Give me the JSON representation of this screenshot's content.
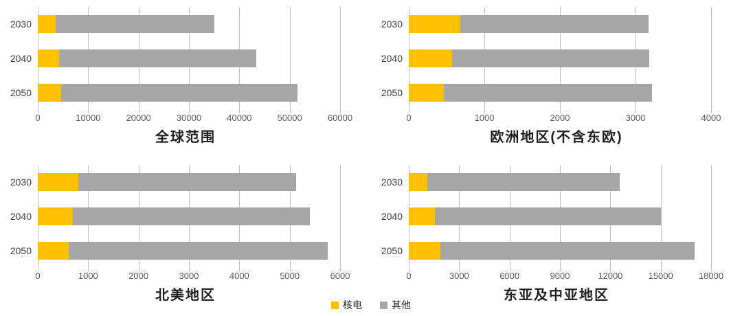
{
  "legend": {
    "position": "bottom-center",
    "items": [
      {
        "label": "核电",
        "key": "nuclear",
        "color": "#FFC000"
      },
      {
        "label": "其他",
        "key": "other",
        "color": "#A6A6A6"
      }
    ]
  },
  "chart_data": [
    {
      "type": "bar",
      "orientation": "horizontal",
      "stacked": true,
      "title": "全球范围",
      "categories": [
        "2030",
        "2040",
        "2050"
      ],
      "series": [
        {
          "name": "核电",
          "key": "nuclear",
          "color": "#FFC000",
          "values": [
            3500,
            4200,
            4700
          ]
        },
        {
          "name": "其他",
          "key": "other",
          "color": "#A6A6A6",
          "values": [
            31500,
            39100,
            46900
          ]
        }
      ],
      "totals": [
        35000,
        43300,
        51600
      ],
      "xlabel": "",
      "ylabel": "",
      "xlim": [
        0,
        60000
      ],
      "xticks": [
        0,
        10000,
        20000,
        30000,
        40000,
        50000,
        60000
      ],
      "grid": true
    },
    {
      "type": "bar",
      "orientation": "horizontal",
      "stacked": true,
      "title": "欧洲地区(不含东欧)",
      "categories": [
        "2030",
        "2040",
        "2050"
      ],
      "series": [
        {
          "name": "核电",
          "key": "nuclear",
          "color": "#FFC000",
          "values": [
            680,
            575,
            460
          ]
        },
        {
          "name": "其他",
          "key": "other",
          "color": "#A6A6A6",
          "values": [
            2490,
            2610,
            2760
          ]
        }
      ],
      "totals": [
        3170,
        3185,
        3220
      ],
      "xlabel": "",
      "ylabel": "",
      "xlim": [
        0,
        4000
      ],
      "xticks": [
        0,
        1000,
        2000,
        3000,
        4000
      ],
      "grid": true
    },
    {
      "type": "bar",
      "orientation": "horizontal",
      "stacked": true,
      "title": "北美地区",
      "categories": [
        "2030",
        "2040",
        "2050"
      ],
      "series": [
        {
          "name": "核电",
          "key": "nuclear",
          "color": "#FFC000",
          "values": [
            800,
            690,
            610
          ]
        },
        {
          "name": "其他",
          "key": "other",
          "color": "#A6A6A6",
          "values": [
            4330,
            4710,
            5150
          ]
        }
      ],
      "totals": [
        5130,
        5400,
        5760
      ],
      "xlabel": "",
      "ylabel": "",
      "xlim": [
        0,
        6000
      ],
      "xticks": [
        0,
        1000,
        2000,
        3000,
        4000,
        5000,
        6000
      ],
      "grid": true
    },
    {
      "type": "bar",
      "orientation": "horizontal",
      "stacked": true,
      "title": "东亚及中亚地区",
      "categories": [
        "2030",
        "2040",
        "2050"
      ],
      "series": [
        {
          "name": "核电",
          "key": "nuclear",
          "color": "#FFC000",
          "values": [
            1100,
            1550,
            1870
          ]
        },
        {
          "name": "其他",
          "key": "other",
          "color": "#A6A6A6",
          "values": [
            11460,
            13480,
            15130
          ]
        }
      ],
      "totals": [
        12560,
        15030,
        17000
      ],
      "xlabel": "",
      "ylabel": "",
      "xlim": [
        0,
        18000
      ],
      "xticks": [
        0,
        3000,
        6000,
        9000,
        12000,
        15000,
        18000
      ],
      "grid": true
    }
  ]
}
